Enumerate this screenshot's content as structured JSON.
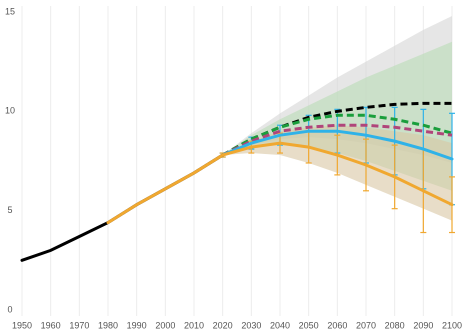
{
  "chart_data": {
    "type": "line",
    "xlim": [
      1950,
      2100
    ],
    "ylim": [
      0,
      15
    ],
    "xticks": [
      1950,
      1960,
      1970,
      1980,
      1990,
      2000,
      2010,
      2020,
      2030,
      2040,
      2050,
      2060,
      2070,
      2080,
      2090,
      2100
    ],
    "yticks": [
      0,
      5,
      10,
      15
    ],
    "grid": true,
    "bands": [
      {
        "color": "#d6d6d6",
        "x": [
          2020,
          2030,
          2040,
          2050,
          2060,
          2070,
          2080,
          2090,
          2100
        ],
        "upper": [
          7.8,
          8.9,
          9.9,
          10.8,
          11.7,
          12.5,
          13.3,
          14.1,
          14.8
        ],
        "lower": [
          7.8,
          8.3,
          8.6,
          8.7,
          8.6,
          8.4,
          8.1,
          7.8,
          7.4
        ]
      },
      {
        "color": "#b9dcb5",
        "x": [
          2020,
          2030,
          2040,
          2050,
          2060,
          2070,
          2080,
          2090,
          2100
        ],
        "upper": [
          7.8,
          8.8,
          9.6,
          10.3,
          11.0,
          11.7,
          12.3,
          12.9,
          13.5
        ],
        "lower": [
          7.8,
          8.2,
          8.3,
          8.2,
          7.9,
          7.5,
          7.0,
          6.5,
          6.0
        ]
      },
      {
        "color": "#d9c6a3",
        "x": [
          2020,
          2030,
          2040,
          2050,
          2060,
          2070,
          2080,
          2090,
          2100
        ],
        "upper": [
          7.8,
          8.5,
          9.0,
          9.2,
          9.3,
          9.2,
          9.0,
          8.8,
          8.4
        ],
        "lower": [
          7.8,
          7.9,
          7.8,
          7.4,
          6.9,
          6.3,
          5.7,
          5.1,
          4.5
        ]
      }
    ],
    "series": [
      {
        "color": "#000000",
        "dash": false,
        "x": [
          1950,
          1960,
          1970,
          1980,
          1990,
          2000,
          2010,
          2020
        ],
        "values": [
          2.5,
          3.0,
          3.7,
          4.4,
          5.3,
          6.1,
          6.9,
          7.8
        ]
      },
      {
        "color": "#000000",
        "dash": true,
        "x": [
          2020,
          2030,
          2040,
          2050,
          2060,
          2070,
          2080,
          2090,
          2100
        ],
        "values": [
          7.8,
          8.6,
          9.2,
          9.7,
          10.0,
          10.2,
          10.35,
          10.4,
          10.4
        ]
      },
      {
        "color": "#1a9e3c",
        "dash": true,
        "x": [
          2020,
          2030,
          2040,
          2050,
          2060,
          2070,
          2080,
          2090,
          2100
        ],
        "values": [
          7.8,
          8.6,
          9.2,
          9.6,
          9.8,
          9.8,
          9.6,
          9.3,
          8.9
        ]
      },
      {
        "color": "#b0457a",
        "dash": true,
        "x": [
          2020,
          2030,
          2040,
          2050,
          2060,
          2070,
          2080,
          2090,
          2100
        ],
        "values": [
          7.8,
          8.5,
          9.0,
          9.2,
          9.3,
          9.3,
          9.2,
          9.0,
          8.8
        ]
      },
      {
        "color": "#2fb2e8",
        "dash": false,
        "x": [
          2020,
          2030,
          2040,
          2050,
          2060,
          2070,
          2080,
          2090,
          2100
        ],
        "values": [
          7.8,
          8.4,
          8.8,
          9.0,
          9.0,
          8.8,
          8.5,
          8.1,
          7.6
        ],
        "errors": [
          0.1,
          0.3,
          0.5,
          0.8,
          1.1,
          1.4,
          1.7,
          2.0,
          2.3
        ]
      },
      {
        "color": "#f0a830",
        "dash": false,
        "x": [
          1980,
          1990,
          2000,
          2010,
          2020,
          2030,
          2040,
          2050,
          2060,
          2070,
          2080,
          2090,
          2100
        ],
        "values": [
          4.4,
          5.3,
          6.1,
          6.9,
          7.8,
          8.2,
          8.4,
          8.2,
          7.8,
          7.3,
          6.7,
          6.0,
          5.3
        ],
        "errors": [
          0,
          0,
          0,
          0,
          0.1,
          0.3,
          0.5,
          0.8,
          1.0,
          1.3,
          1.6,
          2.1,
          1.4
        ]
      }
    ]
  }
}
